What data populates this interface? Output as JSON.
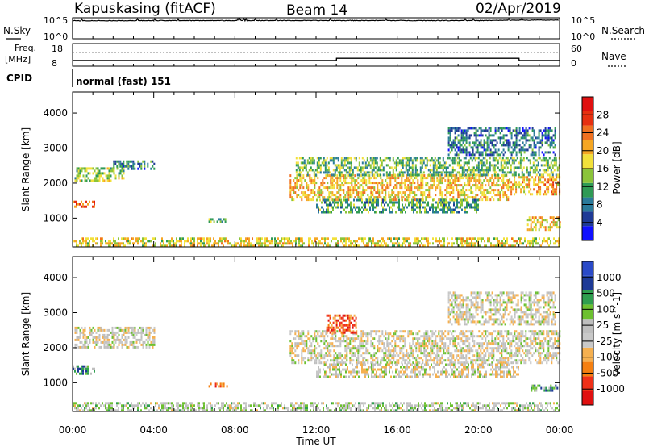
{
  "header": {
    "station": "Kapuskasing (fitACF)",
    "beam": "Beam 14",
    "date": "02/Apr/2019"
  },
  "noise_panel": {
    "left_label": "N.Sky",
    "right_label": "N.Search",
    "left_ticks": [
      "10^5",
      "10^0"
    ],
    "right_ticks": [
      "10^5",
      "10^0"
    ]
  },
  "freq_panel": {
    "left_label_1": "Freq.",
    "left_label_2": "[MHz]",
    "right_label": "Nave",
    "left_ticks": [
      "18",
      "8"
    ],
    "right_ticks": [
      "60",
      "0"
    ]
  },
  "cpid": {
    "label": "CPID",
    "value": "normal (fast) 151"
  },
  "x_ticks": [
    "00:00",
    "04:00",
    "08:00",
    "12:00",
    "16:00",
    "20:00",
    "00:00"
  ],
  "x_label": "Time UT",
  "colors": {
    "power": [
      "#1010ff",
      "#1e3a96",
      "#2a7a9a",
      "#2f9a55",
      "#8bc43a",
      "#f2e03a",
      "#f5a623",
      "#f07020",
      "#e63010",
      "#e01010"
    ],
    "velocity": [
      "#e01010",
      "#f03018",
      "#f57f10",
      "#f5b050",
      "#c8c8c8",
      "#bebebe",
      "#6cc030",
      "#2f9e4f",
      "#1e3a96",
      "#2a4ac8"
    ]
  },
  "chart_data": [
    {
      "type": "heatmap",
      "title": "",
      "xlabel": "Time UT",
      "ylabel": "Slant Range [km]",
      "xlim": [
        0,
        24
      ],
      "ylim": [
        180,
        4600
      ],
      "yticks": [
        1000,
        2000,
        3000,
        4000
      ],
      "colorbar": {
        "label": "Power [dB]",
        "ticks": [
          "4",
          "8",
          "12",
          "16",
          "20",
          "24",
          "28"
        ],
        "range": [
          0,
          32
        ]
      },
      "regions": [
        {
          "t0": 0.0,
          "t1": 24.0,
          "r0": 200,
          "r1": 450,
          "level": 0.55
        },
        {
          "t0": 0.1,
          "t1": 2.5,
          "r0": 2050,
          "r1": 2450,
          "level": 0.45
        },
        {
          "t0": 2.0,
          "t1": 4.0,
          "r0": 2400,
          "r1": 2650,
          "level": 0.25
        },
        {
          "t0": 0.0,
          "t1": 1.1,
          "r0": 1300,
          "r1": 1500,
          "level": 0.75
        },
        {
          "t0": 6.7,
          "t1": 7.6,
          "r0": 880,
          "r1": 1000,
          "level": 0.35
        },
        {
          "t0": 10.7,
          "t1": 21.5,
          "r0": 1550,
          "r1": 2250,
          "level": 0.6
        },
        {
          "t0": 12.0,
          "t1": 20.0,
          "r0": 1150,
          "r1": 1550,
          "level": 0.35
        },
        {
          "t0": 11.0,
          "t1": 24.0,
          "r0": 2250,
          "r1": 2750,
          "level": 0.4
        },
        {
          "t0": 21.5,
          "t1": 24.0,
          "r0": 1650,
          "r1": 2200,
          "level": 0.65
        },
        {
          "t0": 22.4,
          "t1": 24.0,
          "r0": 650,
          "r1": 1050,
          "level": 0.6
        },
        {
          "t0": 18.5,
          "t1": 23.8,
          "r0": 2800,
          "r1": 3600,
          "level": 0.25
        }
      ]
    },
    {
      "type": "heatmap",
      "title": "",
      "xlabel": "Time UT",
      "ylabel": "Slant Range [km]",
      "xlim": [
        0,
        24
      ],
      "ylim": [
        180,
        4600
      ],
      "yticks": [
        1000,
        2000,
        3000,
        4000
      ],
      "colorbar": {
        "label": "Velocity [m s^-1]",
        "ticks": [
          "-1000",
          "-500",
          "-100",
          "-25",
          "25",
          "100",
          "500",
          "1000"
        ],
        "range": [
          -1250,
          1250
        ]
      },
      "regions": [
        {
          "t0": 0.0,
          "t1": 24.0,
          "r0": 200,
          "r1": 450,
          "level": 0.55
        },
        {
          "t0": 0.1,
          "t1": 4.0,
          "r0": 2000,
          "r1": 2600,
          "level": 0.48
        },
        {
          "t0": 0.0,
          "t1": 1.1,
          "r0": 1250,
          "r1": 1500,
          "level": 0.72
        },
        {
          "t0": 6.7,
          "t1": 7.6,
          "r0": 880,
          "r1": 1000,
          "level": 0.25
        },
        {
          "t0": 10.7,
          "t1": 24.0,
          "r0": 1550,
          "r1": 2500,
          "level": 0.48
        },
        {
          "t0": 12.5,
          "t1": 14.0,
          "r0": 2450,
          "r1": 2950,
          "level": 0.2
        },
        {
          "t0": 12.0,
          "t1": 22.0,
          "r0": 1150,
          "r1": 1550,
          "level": 0.48
        },
        {
          "t0": 22.5,
          "t1": 24.0,
          "r0": 750,
          "r1": 950,
          "level": 0.7
        },
        {
          "t0": 18.5,
          "t1": 23.8,
          "r0": 2700,
          "r1": 3600,
          "level": 0.48
        }
      ]
    },
    {
      "type": "line",
      "title": "",
      "series": [
        {
          "x": [
            0,
            4,
            8,
            12,
            16,
            20,
            21.5,
            22,
            24
          ],
          "values": [
            20000,
            21000,
            22000,
            22000,
            22000,
            22000,
            25000,
            28000,
            28000
          ]
        }
      ]
    },
    {
      "type": "line",
      "title": "",
      "series": [
        {
          "x": [
            0,
            13,
            13.01,
            22,
            22.01,
            24
          ],
          "values": [
            10.5,
            10.5,
            11.5,
            11.5,
            10.5,
            10.5
          ]
        },
        {
          "x": [
            0,
            24
          ],
          "values": [
            14.2,
            14.2
          ]
        }
      ]
    }
  ]
}
